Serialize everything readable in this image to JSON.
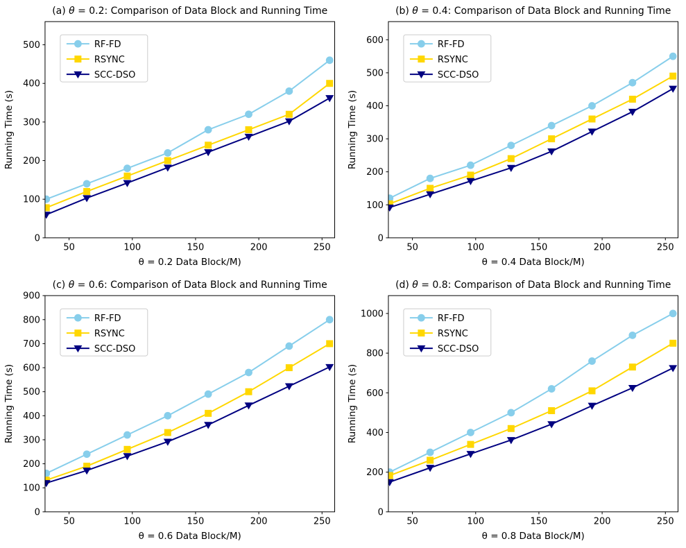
{
  "figure": {
    "background": "#ffffff",
    "text_color": "#000000",
    "spine_color": "#000000",
    "legend_border_color": "#cccccc",
    "legend_bg_color": "#ffffff"
  },
  "chart_data": [
    {
      "id": "a",
      "type": "line",
      "title": "(a) θ = 0.2: Comparison of Data Block and Running Time",
      "xlabel": "θ = 0.2 Data Block/M)",
      "ylabel": "Running Time (s)",
      "x": [
        32,
        64,
        96,
        128,
        160,
        192,
        224,
        256
      ],
      "xlim": [
        31,
        260
      ],
      "ylim": [
        0,
        560
      ],
      "xticks": [
        50,
        100,
        150,
        200,
        250
      ],
      "yticks": [
        0,
        100,
        200,
        300,
        400,
        500
      ],
      "grid": false,
      "legend_position": "upper-left",
      "series": [
        {
          "name": "RF-FD",
          "color": "#87CEEB",
          "marker": "circle",
          "values": [
            100,
            140,
            180,
            220,
            280,
            320,
            380,
            460
          ]
        },
        {
          "name": "RSYNC",
          "color": "#FFD700",
          "marker": "square",
          "values": [
            78,
            120,
            160,
            200,
            240,
            280,
            320,
            400
          ]
        },
        {
          "name": "SCC-DSO",
          "color": "#000080",
          "marker": "triangle-down",
          "values": [
            60,
            103,
            142,
            182,
            222,
            262,
            302,
            362
          ]
        }
      ]
    },
    {
      "id": "b",
      "type": "line",
      "title": "(b) θ = 0.4: Comparison of Data Block and Running Time",
      "xlabel": "θ = 0.4 Data Block/M)",
      "ylabel": "Running Time (s)",
      "x": [
        32,
        64,
        96,
        128,
        160,
        192,
        224,
        256
      ],
      "xlim": [
        31,
        260
      ],
      "ylim": [
        0,
        655
      ],
      "xticks": [
        50,
        100,
        150,
        200,
        250
      ],
      "yticks": [
        0,
        100,
        200,
        300,
        400,
        500,
        600
      ],
      "grid": false,
      "legend_position": "upper-left",
      "series": [
        {
          "name": "RF-FD",
          "color": "#87CEEB",
          "marker": "circle",
          "values": [
            120,
            180,
            220,
            280,
            340,
            400,
            470,
            550
          ]
        },
        {
          "name": "RSYNC",
          "color": "#FFD700",
          "marker": "square",
          "values": [
            103,
            150,
            190,
            240,
            300,
            360,
            420,
            490
          ]
        },
        {
          "name": "SCC-DSO",
          "color": "#000080",
          "marker": "triangle-down",
          "values": [
            92,
            132,
            172,
            212,
            262,
            322,
            382,
            452
          ]
        }
      ]
    },
    {
      "id": "c",
      "type": "line",
      "title": "(c) θ = 0.6: Comparison of Data Block and Running Time",
      "xlabel": "θ = 0.6 Data Block/M)",
      "ylabel": "Running Time (s)",
      "x": [
        32,
        64,
        96,
        128,
        160,
        192,
        224,
        256
      ],
      "xlim": [
        31,
        260
      ],
      "ylim": [
        0,
        900
      ],
      "xticks": [
        50,
        100,
        150,
        200,
        250
      ],
      "yticks": [
        0,
        100,
        200,
        300,
        400,
        500,
        600,
        700,
        800,
        900
      ],
      "grid": false,
      "legend_position": "upper-left",
      "series": [
        {
          "name": "RF-FD",
          "color": "#87CEEB",
          "marker": "circle",
          "values": [
            160,
            240,
            320,
            400,
            490,
            580,
            690,
            800
          ]
        },
        {
          "name": "RSYNC",
          "color": "#FFD700",
          "marker": "square",
          "values": [
            132,
            190,
            260,
            330,
            410,
            500,
            600,
            700
          ]
        },
        {
          "name": "SCC-DSO",
          "color": "#000080",
          "marker": "triangle-down",
          "values": [
            120,
            172,
            232,
            292,
            362,
            443,
            523,
            603
          ]
        }
      ]
    },
    {
      "id": "d",
      "type": "line",
      "title": "(d) θ = 0.8: Comparison of Data Block and Running Time",
      "xlabel": "θ = 0.8 Data Block/M)",
      "ylabel": "Running Time (s)",
      "x": [
        32,
        64,
        96,
        128,
        160,
        192,
        224,
        256
      ],
      "xlim": [
        31,
        260
      ],
      "ylim": [
        0,
        1090
      ],
      "xticks": [
        50,
        100,
        150,
        200,
        250
      ],
      "yticks": [
        0,
        200,
        400,
        600,
        800,
        1000
      ],
      "grid": false,
      "legend_position": "upper-left",
      "series": [
        {
          "name": "RF-FD",
          "color": "#87CEEB",
          "marker": "circle",
          "values": [
            200,
            300,
            400,
            500,
            620,
            760,
            890,
            1000
          ]
        },
        {
          "name": "RSYNC",
          "color": "#FFD700",
          "marker": "square",
          "values": [
            183,
            260,
            340,
            420,
            510,
            610,
            730,
            850
          ]
        },
        {
          "name": "SCC-DSO",
          "color": "#000080",
          "marker": "triangle-down",
          "values": [
            150,
            222,
            292,
            362,
            442,
            535,
            625,
            725
          ]
        }
      ]
    }
  ]
}
